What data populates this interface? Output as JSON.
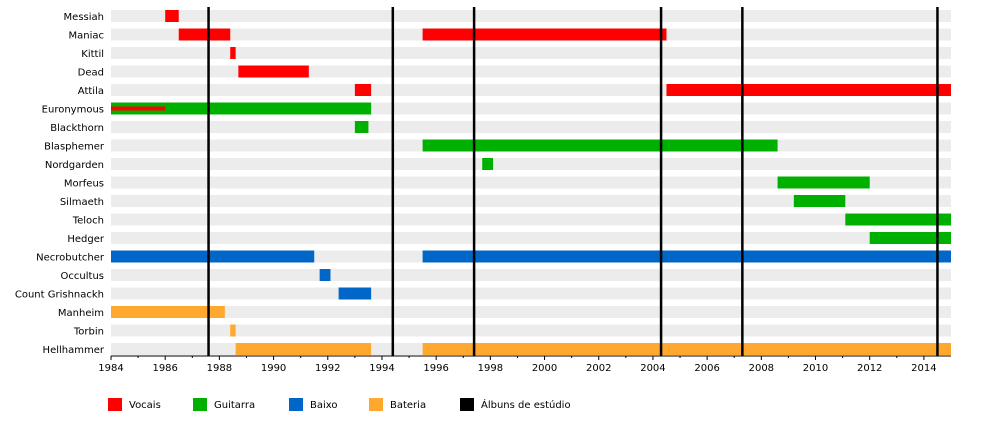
{
  "chart_data": {
    "type": "timeline",
    "xlim": [
      1984,
      2015
    ],
    "x_ticks": [
      "1984",
      "1986",
      "1988",
      "1990",
      "1992",
      "1994",
      "1996",
      "1998",
      "2000",
      "2002",
      "2004",
      "2006",
      "2008",
      "2010",
      "2012",
      "2014"
    ],
    "grid": "alternating row bands",
    "roles": {
      "vocals": {
        "label": "Vocais",
        "color": "#ff0000"
      },
      "guitar": {
        "label": "Guitarra",
        "color": "#00b000"
      },
      "bass": {
        "label": "Baixo",
        "color": "#0066c8"
      },
      "drums": {
        "label": "Bateria",
        "color": "#ffa830"
      },
      "albums": {
        "label": "Álbuns de estúdio",
        "color": "#000000"
      }
    },
    "members": [
      {
        "name": "Messiah",
        "spans": [
          {
            "role": "vocals",
            "start": 1986.0,
            "end": 1986.5
          }
        ]
      },
      {
        "name": "Maniac",
        "spans": [
          {
            "role": "vocals",
            "start": 1986.5,
            "end": 1988.4
          },
          {
            "role": "vocals",
            "start": 1995.5,
            "end": 2004.5
          }
        ]
      },
      {
        "name": "Kittil",
        "spans": [
          {
            "role": "vocals",
            "start": 1988.4,
            "end": 1988.6
          }
        ]
      },
      {
        "name": "Dead",
        "spans": [
          {
            "role": "vocals",
            "start": 1988.7,
            "end": 1991.3
          }
        ]
      },
      {
        "name": "Attila",
        "spans": [
          {
            "role": "vocals",
            "start": 1993.0,
            "end": 1993.6
          },
          {
            "role": "vocals",
            "start": 2004.5,
            "end": 2015.0
          }
        ]
      },
      {
        "name": "Euronymous",
        "spans": [
          {
            "role": "guitar",
            "start": 1984.0,
            "end": 1993.6
          },
          {
            "role": "vocals",
            "start": 1984.0,
            "end": 1986.0,
            "thin": true
          }
        ]
      },
      {
        "name": "Blackthorn",
        "spans": [
          {
            "role": "guitar",
            "start": 1993.0,
            "end": 1993.5
          }
        ]
      },
      {
        "name": "Blasphemer",
        "spans": [
          {
            "role": "guitar",
            "start": 1995.5,
            "end": 2008.6
          }
        ]
      },
      {
        "name": "Nordgarden",
        "spans": [
          {
            "role": "guitar",
            "start": 1997.7,
            "end": 1998.1
          }
        ]
      },
      {
        "name": "Morfeus",
        "spans": [
          {
            "role": "guitar",
            "start": 2008.6,
            "end": 2012.0
          }
        ]
      },
      {
        "name": "Silmaeth",
        "spans": [
          {
            "role": "guitar",
            "start": 2009.2,
            "end": 2011.1
          }
        ]
      },
      {
        "name": "Teloch",
        "spans": [
          {
            "role": "guitar",
            "start": 2011.1,
            "end": 2015.0
          }
        ]
      },
      {
        "name": "Hedger",
        "spans": [
          {
            "role": "guitar",
            "start": 2012.0,
            "end": 2015.0
          }
        ]
      },
      {
        "name": "Necrobutcher",
        "spans": [
          {
            "role": "bass",
            "start": 1984.0,
            "end": 1991.5
          },
          {
            "role": "bass",
            "start": 1995.5,
            "end": 2015.0
          }
        ]
      },
      {
        "name": "Occultus",
        "spans": [
          {
            "role": "bass",
            "start": 1991.7,
            "end": 1992.1
          }
        ]
      },
      {
        "name": "Count Grishnackh",
        "spans": [
          {
            "role": "bass",
            "start": 1992.4,
            "end": 1993.6
          }
        ]
      },
      {
        "name": "Manheim",
        "spans": [
          {
            "role": "drums",
            "start": 1984.0,
            "end": 1988.2
          }
        ]
      },
      {
        "name": "Torbin",
        "spans": [
          {
            "role": "drums",
            "start": 1988.4,
            "end": 1988.6
          }
        ]
      },
      {
        "name": "Hellhammer",
        "spans": [
          {
            "role": "drums",
            "start": 1988.6,
            "end": 1993.6
          },
          {
            "role": "drums",
            "start": 1995.5,
            "end": 2015.0
          }
        ]
      }
    ],
    "album_lines": [
      1987.6,
      1994.4,
      1997.4,
      2004.3,
      2007.3,
      2014.5
    ]
  }
}
